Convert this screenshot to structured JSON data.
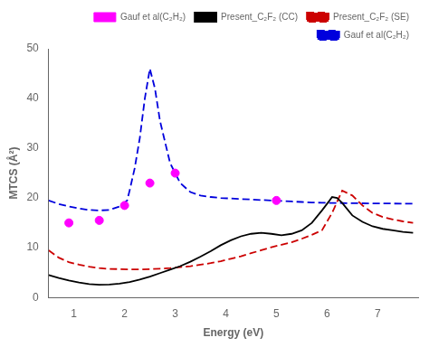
{
  "chart_data": {
    "type": "line",
    "xlabel": "Energy (eV)",
    "ylabel": "MTCS (Å²)",
    "xlim": [
      0.5,
      7.8
    ],
    "ylim": [
      0,
      50
    ],
    "xticks": [
      1,
      2,
      3,
      4,
      5,
      6,
      7
    ],
    "yticks": [
      0,
      10,
      20,
      30,
      40,
      50
    ],
    "grid": false,
    "legend": "upper right",
    "series": [
      {
        "name": "Present_C₂F₂ (CC)",
        "type": "line",
        "color": "#000000",
        "line_style": "solid",
        "x": [
          0.5,
          0.7,
          0.9,
          1.1,
          1.3,
          1.5,
          1.7,
          1.9,
          2.1,
          2.3,
          2.5,
          2.7,
          2.9,
          3.1,
          3.3,
          3.5,
          3.7,
          3.9,
          4.1,
          4.3,
          4.5,
          4.7,
          4.9,
          5.1,
          5.3,
          5.5,
          5.7,
          5.9,
          6.05,
          6.1,
          6.2,
          6.3,
          6.5,
          6.7,
          6.9,
          7.1,
          7.3,
          7.5,
          7.7
        ],
        "values": [
          4.5,
          3.9,
          3.4,
          3.0,
          2.7,
          2.55,
          2.6,
          2.8,
          3.1,
          3.6,
          4.2,
          4.9,
          5.6,
          6.3,
          7.2,
          8.2,
          9.3,
          10.5,
          11.5,
          12.3,
          12.8,
          13.0,
          12.8,
          12.5,
          12.8,
          13.5,
          15.0,
          17.5,
          19.5,
          20.2,
          20.0,
          19.0,
          16.5,
          15.2,
          14.3,
          13.8,
          13.5,
          13.2,
          13.0
        ]
      },
      {
        "name": "Present_C₂F₂ (SE)",
        "type": "line",
        "color": "#cc0000",
        "line_style": "dashed",
        "x": [
          0.5,
          0.7,
          0.9,
          1.1,
          1.3,
          1.5,
          1.7,
          1.9,
          2.1,
          2.3,
          2.5,
          2.7,
          2.9,
          3.1,
          3.3,
          3.5,
          3.7,
          3.9,
          4.1,
          4.3,
          4.5,
          4.7,
          4.9,
          5.1,
          5.3,
          5.5,
          5.7,
          5.9,
          6.1,
          6.3,
          6.5,
          6.7,
          6.9,
          7.1,
          7.3,
          7.5,
          7.7
        ],
        "values": [
          9.5,
          8.0,
          7.1,
          6.6,
          6.2,
          5.9,
          5.75,
          5.7,
          5.65,
          5.65,
          5.7,
          5.8,
          5.9,
          6.1,
          6.3,
          6.6,
          6.9,
          7.3,
          7.8,
          8.3,
          8.9,
          9.5,
          10.1,
          10.6,
          11.1,
          11.8,
          12.6,
          13.5,
          17.0,
          21.5,
          20.5,
          18.5,
          17.0,
          16.2,
          15.7,
          15.3,
          15.0
        ]
      },
      {
        "name": "Gauf et al(C₂H₂)",
        "type": "line",
        "color": "#0000dd",
        "line_style": "dashed",
        "x": [
          0.5,
          0.7,
          0.9,
          1.1,
          1.3,
          1.5,
          1.7,
          1.9,
          2.05,
          2.1,
          2.2,
          2.3,
          2.4,
          2.5,
          2.6,
          2.7,
          2.9,
          3.1,
          3.3,
          3.5,
          3.7,
          3.9,
          4.1,
          4.3,
          4.5,
          4.7,
          4.9,
          5.1,
          5.3,
          5.5,
          5.7,
          5.9,
          6.1,
          6.3,
          6.5,
          6.7,
          6.9,
          7.1,
          7.3,
          7.5,
          7.7
        ],
        "values": [
          19.5,
          18.8,
          18.3,
          17.9,
          17.6,
          17.5,
          17.6,
          18.3,
          19.5,
          21.5,
          26.0,
          32.0,
          40.0,
          46.0,
          42.0,
          35.5,
          27.0,
          23.0,
          21.2,
          20.5,
          20.2,
          20.0,
          19.9,
          19.8,
          19.7,
          19.6,
          19.5,
          19.4,
          19.3,
          19.2,
          19.1,
          19.05,
          19.0,
          18.98,
          18.95,
          18.93,
          18.91,
          18.9,
          18.89,
          18.88,
          18.87
        ]
      },
      {
        "name": "Gauf et al(C₂H₂)",
        "type": "scatter",
        "color": "#ff00ff",
        "marker": "circle",
        "x": [
          0.9,
          1.5,
          2.0,
          2.5,
          3.0,
          5.0
        ],
        "values": [
          15.0,
          15.5,
          18.5,
          23.0,
          25.0,
          19.5
        ]
      }
    ]
  }
}
